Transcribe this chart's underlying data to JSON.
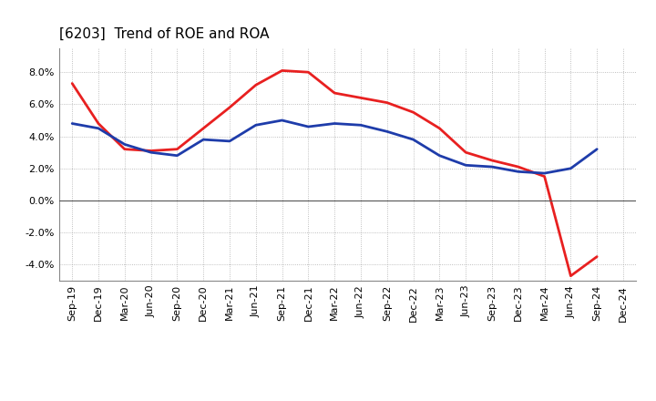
{
  "title": "[6203]  Trend of ROE and ROA",
  "x_labels": [
    "Sep-19",
    "Dec-19",
    "Mar-20",
    "Jun-20",
    "Sep-20",
    "Dec-20",
    "Mar-21",
    "Jun-21",
    "Sep-21",
    "Dec-21",
    "Mar-22",
    "Jun-22",
    "Sep-22",
    "Dec-22",
    "Mar-23",
    "Jun-23",
    "Sep-23",
    "Dec-23",
    "Mar-24",
    "Jun-24",
    "Sep-24",
    "Dec-24"
  ],
  "roe": [
    7.3,
    4.8,
    3.2,
    3.1,
    3.2,
    4.5,
    5.8,
    7.2,
    8.1,
    8.0,
    6.7,
    6.4,
    6.1,
    5.5,
    4.5,
    3.0,
    2.5,
    2.1,
    1.5,
    -4.7,
    -3.5,
    null
  ],
  "roa": [
    4.8,
    4.5,
    3.5,
    3.0,
    2.8,
    3.8,
    3.7,
    4.7,
    5.0,
    4.6,
    4.8,
    4.7,
    4.3,
    3.8,
    2.8,
    2.2,
    2.1,
    1.8,
    1.7,
    2.0,
    3.2,
    null
  ],
  "roe_color": "#e82020",
  "roa_color": "#1e3caa",
  "ylim": [
    -5.0,
    9.5
  ],
  "yticks": [
    -4.0,
    -2.0,
    0.0,
    2.0,
    4.0,
    6.0,
    8.0
  ],
  "background_color": "#ffffff",
  "grid_color": "#999999",
  "title_fontsize": 11,
  "axis_fontsize": 8,
  "legend_fontsize": 10,
  "line_width": 2.0
}
